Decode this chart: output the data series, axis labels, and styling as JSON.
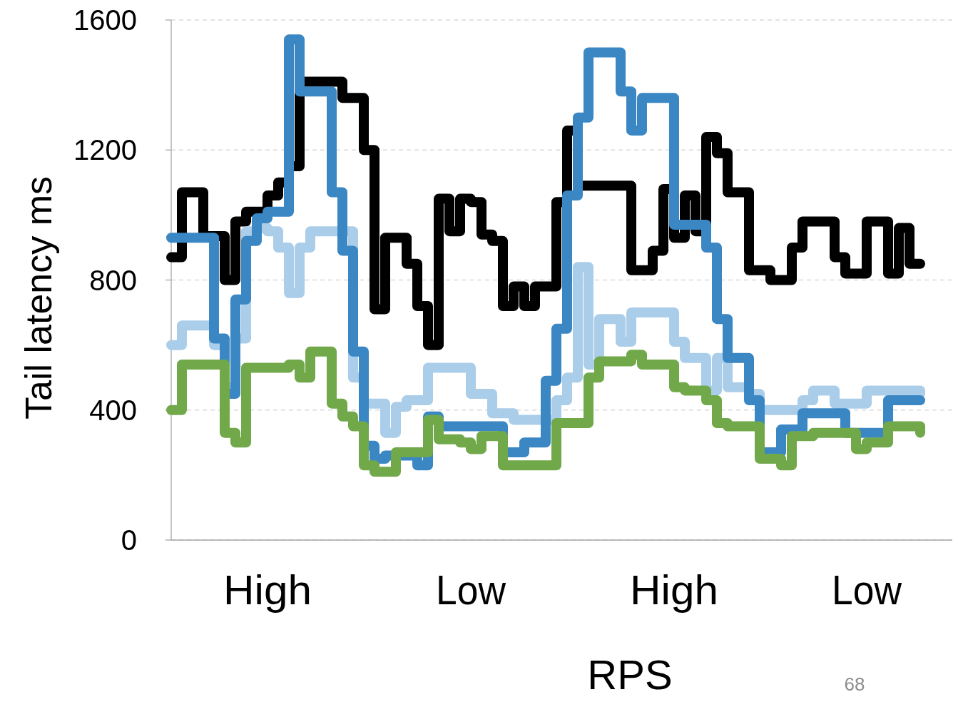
{
  "chart_data": {
    "type": "step",
    "xlabel": "RPS",
    "ylabel": "Tail latency ms",
    "annotations": [
      "68"
    ],
    "categories": [
      null,
      null,
      null,
      null,
      null,
      null,
      null,
      null,
      null,
      "High",
      null,
      null,
      null,
      null,
      null,
      null,
      null,
      null,
      null,
      null,
      null,
      null,
      null,
      null,
      null,
      null,
      null,
      null,
      "Low",
      null,
      null,
      null,
      null,
      null,
      null,
      null,
      null,
      null,
      null,
      null,
      null,
      null,
      null,
      null,
      null,
      null,
      null,
      "High",
      null,
      null,
      null,
      null,
      null,
      null,
      null,
      null,
      null,
      null,
      null,
      null,
      null,
      null,
      null,
      null,
      null,
      "Low",
      null,
      null,
      null,
      null,
      null,
      null,
      null,
      null
    ],
    "ylim": [
      0,
      1600
    ],
    "yticks": [
      0,
      400,
      800,
      1200,
      1600
    ],
    "grid": "y",
    "marker": "none",
    "line_style": "solid",
    "series": [
      {
        "color": "#000000",
        "values": [
          870,
          1070,
          1070,
          935,
          935,
          800,
          980,
          1010,
          1010,
          1060,
          1100,
          1150,
          1410,
          1410,
          1410,
          1410,
          1360,
          1360,
          1200,
          710,
          930,
          930,
          850,
          720,
          600,
          1050,
          950,
          1050,
          1040,
          940,
          920,
          720,
          780,
          720,
          780,
          780,
          1040,
          1260,
          1090,
          1090,
          1090,
          1090,
          1090,
          830,
          830,
          890,
          1080,
          930,
          1060,
          950,
          1240,
          1190,
          1070,
          1070,
          830,
          830,
          800,
          800,
          900,
          980,
          980,
          980,
          870,
          820,
          820,
          980,
          980,
          820,
          960,
          850,
          850,
          null,
          null,
          null
        ]
      },
      {
        "color": "#aacde9",
        "values": [
          600,
          660,
          660,
          660,
          600,
          470,
          620,
          950,
          960,
          950,
          900,
          760,
          900,
          950,
          950,
          950,
          950,
          500,
          420,
          420,
          330,
          410,
          430,
          430,
          530,
          530,
          530,
          530,
          450,
          450,
          390,
          390,
          370,
          370,
          370,
          370,
          430,
          500,
          840,
          540,
          680,
          680,
          610,
          700,
          700,
          700,
          700,
          610,
          560,
          560,
          460,
          560,
          470,
          470,
          450,
          400,
          400,
          400,
          400,
          430,
          460,
          460,
          420,
          420,
          420,
          460,
          460,
          460,
          460,
          460,
          450,
          null,
          null,
          null
        ]
      },
      {
        "color": "#3a87c4",
        "values": [
          930,
          930,
          930,
          930,
          620,
          450,
          740,
          920,
          990,
          1010,
          1010,
          1540,
          1380,
          1380,
          1380,
          1070,
          890,
          580,
          290,
          250,
          260,
          260,
          260,
          230,
          380,
          350,
          350,
          350,
          350,
          350,
          350,
          270,
          270,
          300,
          300,
          490,
          650,
          1060,
          1300,
          1500,
          1500,
          1500,
          1380,
          1260,
          1360,
          1360,
          1360,
          970,
          970,
          970,
          900,
          680,
          560,
          560,
          430,
          270,
          270,
          340,
          340,
          390,
          390,
          390,
          390,
          330,
          330,
          330,
          330,
          430,
          430,
          430,
          430,
          null,
          null,
          null
        ]
      },
      {
        "color": "#70a84a",
        "values": [
          400,
          540,
          540,
          540,
          540,
          330,
          300,
          530,
          530,
          530,
          530,
          540,
          500,
          580,
          580,
          420,
          380,
          350,
          230,
          210,
          210,
          270,
          270,
          270,
          370,
          310,
          310,
          300,
          280,
          320,
          320,
          230,
          230,
          230,
          230,
          230,
          360,
          360,
          360,
          500,
          550,
          550,
          550,
          570,
          540,
          540,
          540,
          470,
          460,
          460,
          430,
          360,
          350,
          350,
          350,
          250,
          250,
          230,
          320,
          320,
          330,
          330,
          330,
          330,
          280,
          300,
          300,
          350,
          350,
          350,
          330,
          null,
          null,
          null
        ]
      }
    ]
  }
}
